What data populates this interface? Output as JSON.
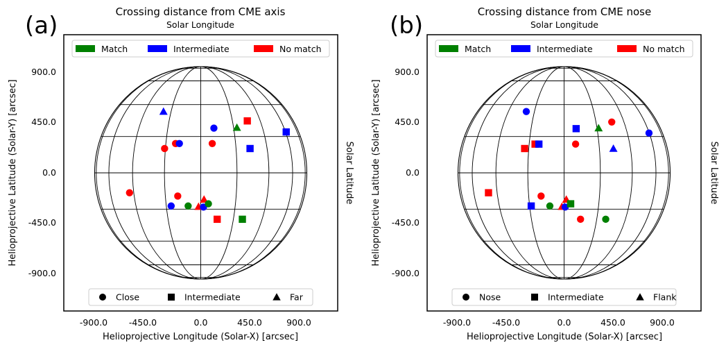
{
  "chart_data": [
    {
      "type": "scatter",
      "panel_label": "(a)",
      "title": "Crossing distance from CME axis",
      "top_label": "Solar Longitude",
      "right_label": "Solar Latitude",
      "xlabel": "Helioprojective Longitude (Solar-X) [arcsec]",
      "ylabel": "Helioprojective Latitude (Solar-Y) [arcsec]",
      "xlim": [
        -1250,
        1250
      ],
      "ylim": [
        -1250,
        1250
      ],
      "xticks": [
        "-900.0",
        "-450.0",
        "0.0",
        "450.0",
        "900.0"
      ],
      "yticks": [
        "900.0",
        "450.0",
        "0.0",
        "-450.0",
        "-900.0"
      ],
      "color_legend": [
        {
          "label": "Match",
          "color": "#008000"
        },
        {
          "label": "Intermediate",
          "color": "#0000ff"
        },
        {
          "label": "No match",
          "color": "#ff0000"
        }
      ],
      "marker_legend": [
        {
          "label": "Close",
          "marker": "circle"
        },
        {
          "label": "Intermediate",
          "marker": "square"
        },
        {
          "label": "Far",
          "marker": "triangle"
        }
      ],
      "points": [
        {
          "x": -340,
          "y": 555,
          "color": "#0000ff",
          "marker": "triangle"
        },
        {
          "x": 120,
          "y": 405,
          "color": "#0000ff",
          "marker": "circle"
        },
        {
          "x": 330,
          "y": 410,
          "color": "#008000",
          "marker": "triangle"
        },
        {
          "x": 425,
          "y": 470,
          "color": "#ff0000",
          "marker": "square"
        },
        {
          "x": 780,
          "y": 370,
          "color": "#0000ff",
          "marker": "square"
        },
        {
          "x": -330,
          "y": 220,
          "color": "#ff0000",
          "marker": "circle"
        },
        {
          "x": -230,
          "y": 265,
          "color": "#ff0000",
          "marker": "circle"
        },
        {
          "x": -195,
          "y": 265,
          "color": "#0000ff",
          "marker": "circle"
        },
        {
          "x": 105,
          "y": 265,
          "color": "#ff0000",
          "marker": "circle"
        },
        {
          "x": 450,
          "y": 220,
          "color": "#0000ff",
          "marker": "square"
        },
        {
          "x": -650,
          "y": -180,
          "color": "#ff0000",
          "marker": "circle"
        },
        {
          "x": -210,
          "y": -210,
          "color": "#ff0000",
          "marker": "circle"
        },
        {
          "x": -270,
          "y": -300,
          "color": "#0000ff",
          "marker": "circle"
        },
        {
          "x": -115,
          "y": -300,
          "color": "#008000",
          "marker": "circle"
        },
        {
          "x": -20,
          "y": -305,
          "color": "#ff0000",
          "marker": "triangle"
        },
        {
          "x": 30,
          "y": -240,
          "color": "#ff0000",
          "marker": "triangle"
        },
        {
          "x": 25,
          "y": -310,
          "color": "#0000ff",
          "marker": "circle"
        },
        {
          "x": 70,
          "y": -280,
          "color": "#008000",
          "marker": "circle"
        },
        {
          "x": 150,
          "y": -420,
          "color": "#ff0000",
          "marker": "square"
        },
        {
          "x": 380,
          "y": -420,
          "color": "#008000",
          "marker": "square"
        }
      ]
    },
    {
      "type": "scatter",
      "panel_label": "(b)",
      "title": "Crossing distance from CME nose",
      "top_label": "Solar Longitude",
      "right_label": "Solar Latitude",
      "xlabel": "Helioprojective Longitude (Solar-X) [arcsec]",
      "ylabel": "Helioprojective Latitude (Solar-Y) [arcsec]",
      "xlim": [
        -1250,
        1250
      ],
      "ylim": [
        -1250,
        1250
      ],
      "xticks": [
        "-900.0",
        "-450.0",
        "0.0",
        "450.0",
        "900.0"
      ],
      "yticks": [
        "900.0",
        "450.0",
        "0.0",
        "-450.0",
        "-900.0"
      ],
      "color_legend": [
        {
          "label": "Match",
          "color": "#008000"
        },
        {
          "label": "Intermediate",
          "color": "#0000ff"
        },
        {
          "label": "No match",
          "color": "#ff0000"
        }
      ],
      "marker_legend": [
        {
          "label": "Nose",
          "marker": "circle"
        },
        {
          "label": "Intermediate",
          "marker": "square"
        },
        {
          "label": "Flank",
          "marker": "triangle"
        }
      ],
      "points": [
        {
          "x": -345,
          "y": 555,
          "color": "#0000ff",
          "marker": "circle"
        },
        {
          "x": 110,
          "y": 400,
          "color": "#0000ff",
          "marker": "square"
        },
        {
          "x": 315,
          "y": 405,
          "color": "#008000",
          "marker": "triangle"
        },
        {
          "x": 435,
          "y": 460,
          "color": "#ff0000",
          "marker": "circle"
        },
        {
          "x": 775,
          "y": 360,
          "color": "#0000ff",
          "marker": "circle"
        },
        {
          "x": -360,
          "y": 220,
          "color": "#ff0000",
          "marker": "square"
        },
        {
          "x": -265,
          "y": 260,
          "color": "#ff0000",
          "marker": "square"
        },
        {
          "x": -230,
          "y": 260,
          "color": "#0000ff",
          "marker": "square"
        },
        {
          "x": 105,
          "y": 260,
          "color": "#ff0000",
          "marker": "circle"
        },
        {
          "x": 450,
          "y": 220,
          "color": "#0000ff",
          "marker": "triangle"
        },
        {
          "x": -690,
          "y": -180,
          "color": "#ff0000",
          "marker": "square"
        },
        {
          "x": -210,
          "y": -210,
          "color": "#ff0000",
          "marker": "circle"
        },
        {
          "x": -300,
          "y": -300,
          "color": "#0000ff",
          "marker": "square"
        },
        {
          "x": -130,
          "y": -300,
          "color": "#008000",
          "marker": "circle"
        },
        {
          "x": -20,
          "y": -305,
          "color": "#ff0000",
          "marker": "triangle"
        },
        {
          "x": 20,
          "y": -240,
          "color": "#ff0000",
          "marker": "triangle"
        },
        {
          "x": 10,
          "y": -310,
          "color": "#0000ff",
          "marker": "circle"
        },
        {
          "x": 60,
          "y": -280,
          "color": "#008000",
          "marker": "square"
        },
        {
          "x": 150,
          "y": -420,
          "color": "#ff0000",
          "marker": "circle"
        },
        {
          "x": 380,
          "y": -420,
          "color": "#008000",
          "marker": "circle"
        }
      ]
    }
  ]
}
